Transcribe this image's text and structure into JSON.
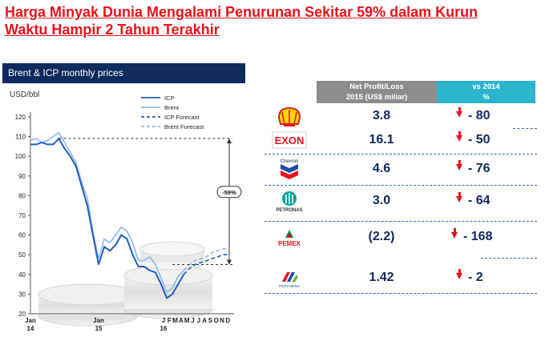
{
  "title": {
    "line1": "Harga Minyak Dunia Mengalami Penurunan Sekitar 59% dalam Kurun",
    "line2": "Waktu Hampir 2 Tahun Terakhir"
  },
  "chart_data": {
    "type": "line",
    "title": "Brent & ICP monthly prices",
    "ylabel": "USD/bbl",
    "xlabel": "",
    "ylim": [
      20,
      120
    ],
    "yticks": [
      20,
      30,
      40,
      50,
      60,
      70,
      80,
      90,
      100,
      110,
      120
    ],
    "grid": false,
    "legend_position": "top-right",
    "x_month_index": [
      0,
      1,
      2,
      3,
      4,
      5,
      6,
      7,
      8,
      9,
      10,
      11,
      12,
      13,
      14,
      15,
      16,
      17,
      18,
      19,
      20,
      21,
      22,
      23,
      24,
      25,
      26,
      27
    ],
    "x_tick_labels": [
      {
        "index": 0,
        "label": "Jan",
        "year": "14"
      },
      {
        "index": 12,
        "label": "Jan",
        "year": "15"
      },
      {
        "index": 24,
        "label": "J",
        "year": "16"
      },
      {
        "index": 25,
        "label": "F"
      },
      {
        "index": 26,
        "label": "M"
      },
      {
        "index": 27,
        "label": "A"
      },
      {
        "index": 28,
        "label": "M"
      },
      {
        "index": 29,
        "label": "J"
      },
      {
        "index": 30,
        "label": "J"
      },
      {
        "index": 31,
        "label": "A"
      },
      {
        "index": 32,
        "label": "S"
      },
      {
        "index": 33,
        "label": "O"
      },
      {
        "index": 34,
        "label": "N"
      },
      {
        "index": 35,
        "label": "D"
      }
    ],
    "series": [
      {
        "name": "ICP",
        "style": "solid",
        "color": "#1f5fbf",
        "values": [
          106,
          106,
          107,
          106,
          106,
          109,
          104,
          100,
          95,
          85,
          75,
          60,
          45,
          54,
          52,
          55,
          60,
          58,
          50,
          44,
          44,
          42,
          41,
          35,
          28,
          30,
          35,
          40
        ]
      },
      {
        "name": "Brent",
        "style": "solid",
        "color": "#8fb8ec",
        "values": [
          108,
          109,
          107,
          108,
          110,
          112,
          107,
          102,
          97,
          87,
          79,
          62,
          48,
          58,
          56,
          60,
          64,
          62,
          56,
          47,
          47,
          49,
          45,
          38,
          31,
          33,
          39,
          42
        ]
      },
      {
        "name": "ICP Forecast",
        "style": "dashed",
        "color": "#1f5fbf",
        "x": [
          27,
          28,
          29,
          30,
          31,
          32,
          33,
          34,
          35
        ],
        "values": [
          40,
          43,
          45,
          46,
          47,
          48,
          49,
          50,
          50
        ]
      },
      {
        "name": "Brent Forecast",
        "style": "dashed",
        "color": "#8fb8ec",
        "x": [
          27,
          28,
          29,
          30,
          31,
          32,
          33,
          34,
          35
        ],
        "values": [
          42,
          45,
          47,
          48,
          49,
          51,
          52,
          53,
          53
        ]
      }
    ],
    "annotations": [
      {
        "text": "-59%",
        "from": 109,
        "to": 45
      }
    ]
  },
  "table": {
    "headers": {
      "profit": [
        "Net Profit/Loss",
        "2015 (US$ miliar)"
      ],
      "change": [
        "vs 2014",
        "%"
      ]
    },
    "rows": [
      {
        "logo": "shell-logo",
        "company": "",
        "profit": "3.8",
        "change": "- 80"
      },
      {
        "logo": "exxon-logo",
        "company": "EXON",
        "profit": "16.1",
        "change": "- 50"
      },
      {
        "logo": "chevron-logo",
        "company": "Chevron",
        "profit": "4.6",
        "change": "- 76"
      },
      {
        "logo": "petronas-logo",
        "company": "PETRONAS",
        "profit": "3.0",
        "change": "- 64"
      },
      {
        "logo": "pemex-logo",
        "company": "PEMEX",
        "profit": "(2.2)",
        "change": "- 168"
      },
      {
        "logo": "pertamina-logo",
        "company": "PERTAMINA",
        "profit": "1.42",
        "change": "- 2"
      }
    ]
  },
  "colors": {
    "title_red": "#e8131b",
    "header_navy": "#0e2a5e",
    "header_gray": "#8d8d8d",
    "header_teal": "#2bb5cf",
    "value_navy": "#0e2a5e",
    "arrow_red": "#e8131b"
  }
}
